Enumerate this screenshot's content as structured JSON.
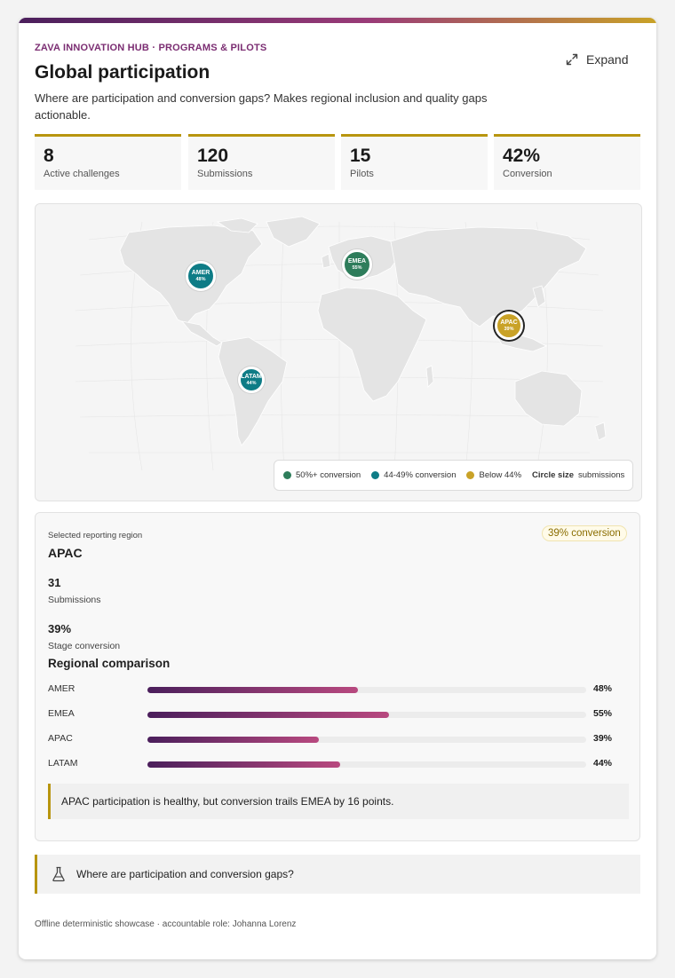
{
  "header": {
    "eyebrow": "ZAVA INNOVATION HUB · PROGRAMS & PILOTS",
    "title": "Global participation",
    "subtitle": "Where are participation and conversion gaps? Makes regional inclusion and quality gaps actionable.",
    "expand_label": "Expand"
  },
  "kpis": [
    {
      "value": "8",
      "label": "Active challenges"
    },
    {
      "value": "120",
      "label": "Submissions"
    },
    {
      "value": "15",
      "label": "Pilots"
    },
    {
      "value": "42%",
      "label": "Conversion"
    }
  ],
  "map": {
    "markers": [
      {
        "name": "AMER",
        "value": "48%",
        "color": "#0e7c86",
        "icon": "region-marker"
      },
      {
        "name": "EMEA",
        "value": "55%",
        "color": "#2e7d5b",
        "icon": "region-marker"
      },
      {
        "name": "APAC",
        "value": "39%",
        "color": "#c9a227",
        "icon": "region-marker"
      },
      {
        "name": "LATAM",
        "value": "44%",
        "color": "#0e7c86",
        "icon": "region-marker"
      }
    ],
    "legend": {
      "high": "50%+ conversion",
      "mid": "44-49% conversion",
      "low": "Below 44%",
      "size_bold": "Circle size",
      "size_text": "submissions",
      "colors": {
        "high": "#2e7d5b",
        "mid": "#0e7c86",
        "low": "#c9a227"
      }
    }
  },
  "region": {
    "selected_label": "Selected reporting region",
    "name": "APAC",
    "badge": "39% conversion",
    "submissions_value": "31",
    "submissions_label": "Submissions",
    "conversion_value": "39%",
    "conversion_label": "Stage conversion",
    "comparison_title": "Regional comparison",
    "bars": [
      {
        "label": "AMER",
        "value": "48%",
        "fraction": 0.48
      },
      {
        "label": "EMEA",
        "value": "55%",
        "fraction": 0.55
      },
      {
        "label": "APAC",
        "value": "39%",
        "fraction": 0.39
      },
      {
        "label": "LATAM",
        "value": "44%",
        "fraction": 0.44
      }
    ],
    "insight": "APAC participation is healthy, but conversion trails EMEA by 16 points."
  },
  "question": {
    "icon": "beaker-icon",
    "text": "Where are participation and conversion gaps?"
  },
  "footer": {
    "text": "Offline deterministic showcase · accountable role: Johanna Lorenz"
  },
  "colors": {
    "accent": "#b8950f",
    "brand": "#7b2d72"
  }
}
